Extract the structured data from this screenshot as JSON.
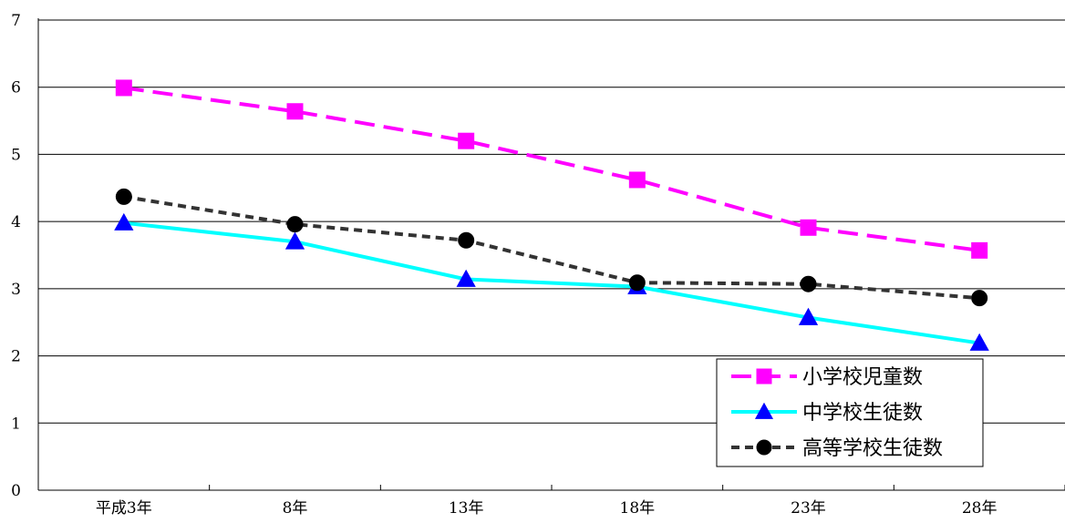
{
  "chart_data": {
    "type": "line",
    "categories": [
      "平成3年",
      "8年",
      "13年",
      "18年",
      "23年",
      "28年"
    ],
    "ylim": [
      0,
      7
    ],
    "yticks": [
      0,
      1,
      2,
      3,
      4,
      5,
      6,
      7
    ],
    "grid": "horizontal",
    "legend_position": "bottom-right",
    "series": [
      {
        "name": "小学校児童数",
        "values": [
          5.99,
          5.64,
          5.2,
          4.62,
          3.91,
          3.57
        ],
        "color": "#ff00ff",
        "line_style": "dashed",
        "marker": "square"
      },
      {
        "name": "中学校生徒数",
        "values": [
          3.98,
          3.7,
          3.14,
          3.03,
          2.57,
          2.19
        ],
        "color": "#00ffff",
        "line_style": "solid",
        "marker": "triangle",
        "marker_color": "#0000ff"
      },
      {
        "name": "高等学校生徒数",
        "values": [
          4.37,
          3.96,
          3.72,
          3.09,
          3.07,
          2.86
        ],
        "color": "#333333",
        "line_style": "dotted",
        "marker": "circle",
        "marker_color": "#000000"
      }
    ]
  }
}
